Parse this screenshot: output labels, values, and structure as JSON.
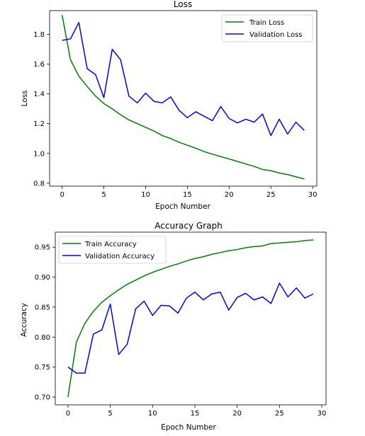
{
  "chart_data": [
    {
      "type": "line",
      "title": "Loss",
      "xlabel": "Epoch Number",
      "ylabel": "Loss",
      "xlim": [
        -1.5,
        30.5
      ],
      "ylim": [
        0.78,
        1.96
      ],
      "xticks": [
        0,
        5,
        10,
        15,
        20,
        25,
        30
      ],
      "yticks": [
        0.8,
        1.0,
        1.2,
        1.4,
        1.6,
        1.8
      ],
      "legend_position": "upper right",
      "grid": false,
      "x": [
        0,
        1,
        2,
        3,
        4,
        5,
        6,
        7,
        8,
        9,
        10,
        11,
        12,
        13,
        14,
        15,
        16,
        17,
        18,
        19,
        20,
        21,
        22,
        23,
        24,
        25,
        26,
        27,
        28,
        29
      ],
      "series": [
        {
          "name": "Train Loss",
          "color": "#008000",
          "values": [
            1.93,
            1.63,
            1.52,
            1.45,
            1.385,
            1.335,
            1.3,
            1.26,
            1.225,
            1.2,
            1.175,
            1.15,
            1.12,
            1.1,
            1.075,
            1.055,
            1.035,
            1.012,
            0.995,
            0.978,
            0.963,
            0.946,
            0.929,
            0.913,
            0.892,
            0.884,
            0.868,
            0.858,
            0.843,
            0.828
          ]
        },
        {
          "name": "Validation Loss",
          "color": "#0000ff",
          "values": [
            1.76,
            1.77,
            1.88,
            1.57,
            1.53,
            1.375,
            1.7,
            1.63,
            1.385,
            1.34,
            1.405,
            1.35,
            1.34,
            1.38,
            1.29,
            1.24,
            1.28,
            1.25,
            1.22,
            1.315,
            1.235,
            1.205,
            1.23,
            1.21,
            1.265,
            1.12,
            1.23,
            1.13,
            1.21,
            1.155
          ]
        }
      ]
    },
    {
      "type": "line",
      "title": "Accuracy Graph",
      "xlabel": "Epoch Number",
      "ylabel": "Accuracy",
      "xlim": [
        -1.5,
        30.5
      ],
      "ylim": [
        0.687,
        0.975
      ],
      "xticks": [
        0,
        5,
        10,
        15,
        20,
        25,
        30
      ],
      "yticks": [
        0.7,
        0.75,
        0.8,
        0.85,
        0.9,
        0.95
      ],
      "legend_position": "upper left",
      "grid": false,
      "x": [
        0,
        1,
        2,
        3,
        4,
        5,
        6,
        7,
        8,
        9,
        10,
        11,
        12,
        13,
        14,
        15,
        16,
        17,
        18,
        19,
        20,
        21,
        22,
        23,
        24,
        25,
        26,
        27,
        28,
        29
      ],
      "series": [
        {
          "name": "Train Accuracy",
          "color": "#008000",
          "values": [
            0.7,
            0.792,
            0.823,
            0.843,
            0.858,
            0.869,
            0.879,
            0.888,
            0.895,
            0.902,
            0.908,
            0.913,
            0.918,
            0.922,
            0.927,
            0.931,
            0.934,
            0.938,
            0.941,
            0.944,
            0.946,
            0.949,
            0.951,
            0.952,
            0.956,
            0.957,
            0.958,
            0.959,
            0.961,
            0.962
          ]
        },
        {
          "name": "Validation Accuracy",
          "color": "#0000ff",
          "values": [
            0.75,
            0.74,
            0.74,
            0.805,
            0.812,
            0.855,
            0.771,
            0.788,
            0.847,
            0.86,
            0.836,
            0.853,
            0.852,
            0.84,
            0.865,
            0.875,
            0.862,
            0.872,
            0.875,
            0.845,
            0.866,
            0.873,
            0.862,
            0.867,
            0.856,
            0.89,
            0.867,
            0.882,
            0.865,
            0.872
          ]
        }
      ]
    }
  ]
}
